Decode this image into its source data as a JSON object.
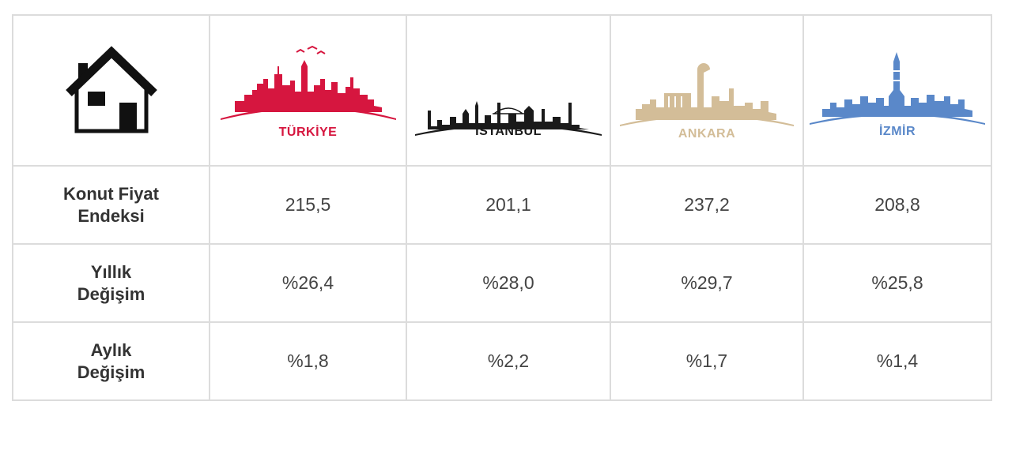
{
  "colors": {
    "turkiye": "#d6163f",
    "istanbul": "#1a1a1a",
    "ankara": "#d3bd98",
    "izmir": "#5a88c9"
  },
  "header": {
    "icon": "house-icon",
    "cities": [
      {
        "name": "TÜRKİYE",
        "color": "#d6163f"
      },
      {
        "name": "İSTANBUL",
        "color": "#1a1a1a"
      },
      {
        "name": "ANKARA",
        "color": "#d3bd98"
      },
      {
        "name": "İZMİR",
        "color": "#5a88c9"
      }
    ]
  },
  "rows": [
    {
      "label_1": "Konut Fiyat",
      "label_2": "Endeksi",
      "values": [
        "215,5",
        "201,1",
        "237,2",
        "208,8"
      ]
    },
    {
      "label_1": "Yıllık",
      "label_2": "Değişim",
      "values": [
        "%26,4",
        "%28,0",
        "%29,7",
        "%25,8"
      ]
    },
    {
      "label_1": "Aylık",
      "label_2": "Değişim",
      "values": [
        "%1,8",
        "%2,2",
        "%1,7",
        "%1,4"
      ]
    }
  ]
}
